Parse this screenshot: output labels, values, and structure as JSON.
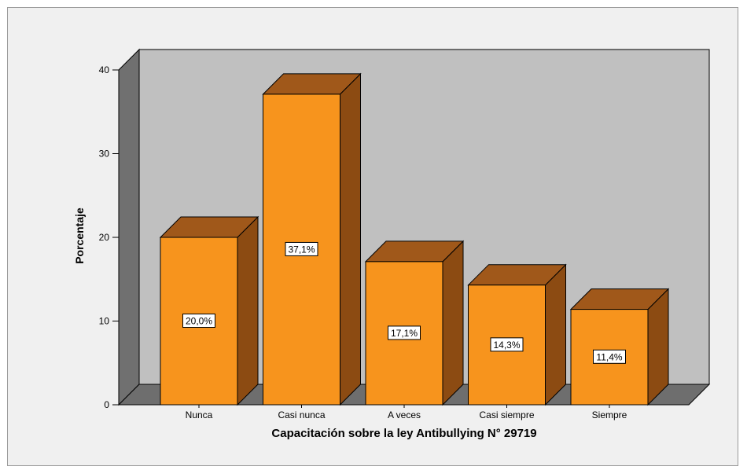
{
  "chart_data": {
    "type": "bar",
    "categories": [
      "Nunca",
      "Casi nunca",
      "A veces",
      "Casi siempre",
      "Siempre"
    ],
    "values": [
      20.0,
      37.1,
      17.1,
      14.3,
      11.4
    ],
    "data_labels": [
      "20,0%",
      "37,1%",
      "17,1%",
      "14,3%",
      "11,4%"
    ],
    "xlabel": "Capacitación sobre la ley Antibullying N° 29719",
    "ylabel": "Porcentaje",
    "ylim": [
      0,
      40
    ],
    "yticks": [
      0,
      10,
      20,
      30,
      40
    ],
    "grid": false,
    "three_d": true,
    "colors": {
      "bar_front": "#f7941d",
      "bar_top": "#a0581a",
      "bar_side": "#8c4b12",
      "wall_back": "#c0c0c0",
      "wall_left": "#707070",
      "floor": "#6e6e6e",
      "background": "#f0f0f0"
    }
  }
}
